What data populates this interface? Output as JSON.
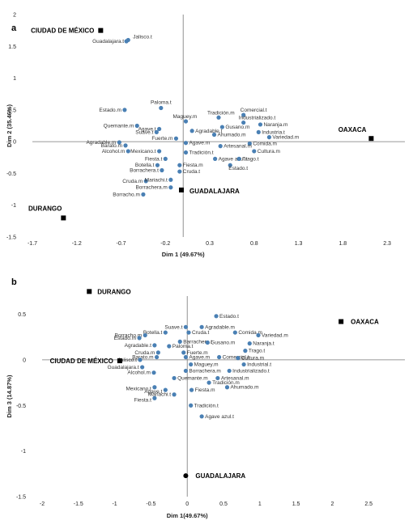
{
  "chart_data": [
    {
      "type": "scatter",
      "panel": "a",
      "xlabel": "Dim 1 (49.67%)",
      "ylabel": "Dim 2 (35.46%)",
      "xlim": [
        -1.7,
        2.5
      ],
      "ylim": [
        -1.5,
        2
      ],
      "xticks": [
        -1.7,
        -1.2,
        -0.7,
        -0.2,
        0.3,
        0.8,
        1.3,
        1.8,
        2.3
      ],
      "yticks": [
        2,
        1.5,
        1,
        0.5,
        0,
        -0.5,
        -1,
        -1.5
      ],
      "ytick_labels": [
        "2",
        "1.5",
        "1",
        "0.5",
        "0",
        "-0.5",
        "-1",
        "-1.5"
      ],
      "cities": [
        {
          "label": "CIUDAD DE MÉXICO",
          "x": -0.93,
          "y": 1.75,
          "marker": "square"
        },
        {
          "label": "OAXACA",
          "x": 2.12,
          "y": 0.05,
          "marker": "square"
        },
        {
          "label": "GUADALAJARA",
          "x": -0.02,
          "y": -0.76,
          "marker": "square"
        },
        {
          "label": "DURANGO",
          "x": -1.35,
          "y": -1.2,
          "marker": "square"
        }
      ],
      "points": [
        {
          "label": "Jalisco.t",
          "x": -0.62,
          "y": 1.6
        },
        {
          "label": "Guadalajara.t",
          "x": -0.64,
          "y": 1.58,
          "show": false
        },
        {
          "label": "Paloma.t",
          "x": -0.25,
          "y": 0.53
        },
        {
          "label": "Estado.m",
          "x": -0.66,
          "y": 0.5
        },
        {
          "label": "Tradición.m",
          "x": 0.4,
          "y": 0.38
        },
        {
          "label": "Comercial.t",
          "x": 0.68,
          "y": 0.42
        },
        {
          "label": "Maguey.m",
          "x": 0.03,
          "y": 0.32
        },
        {
          "label": "Industrializado.t",
          "x": 0.68,
          "y": 0.3
        },
        {
          "label": "Agave.t",
          "x": -0.27,
          "y": 0.2
        },
        {
          "label": "Quemante.m",
          "x": -0.52,
          "y": 0.25
        },
        {
          "label": "Naranja.m",
          "x": 0.87,
          "y": 0.27
        },
        {
          "label": "Gusano.m",
          "x": 0.44,
          "y": 0.23
        },
        {
          "label": "Suave.t",
          "x": -0.3,
          "y": 0.15
        },
        {
          "label": "Agradable.t",
          "x": 0.1,
          "y": 0.17
        },
        {
          "label": "Industria.t",
          "x": 0.85,
          "y": 0.15
        },
        {
          "label": "Fuerte.m",
          "x": -0.08,
          "y": 0.05
        },
        {
          "label": "Ahumado.m",
          "x": 0.35,
          "y": 0.11
        },
        {
          "label": "Variedad.m",
          "x": 0.97,
          "y": 0.07
        },
        {
          "label": "Comida.m",
          "x": 0.75,
          "y": -0.03
        },
        {
          "label": "Agave.m",
          "x": 0.03,
          "y": -0.02
        },
        {
          "label": "Barato.m",
          "x": -0.65,
          "y": -0.06
        },
        {
          "label": "Cultura.m",
          "x": 0.8,
          "y": -0.15
        },
        {
          "label": "Artesanal.m",
          "x": 0.42,
          "y": -0.07
        },
        {
          "label": "Agradable.m",
          "x": -0.72,
          "y": -0.01
        },
        {
          "label": "Alcohol.m",
          "x": -0.62,
          "y": -0.15
        },
        {
          "label": "Mexicano.t",
          "x": -0.27,
          "y": -0.15
        },
        {
          "label": "Tradición.t",
          "x": 0.03,
          "y": -0.17
        },
        {
          "label": "Agave azul.t",
          "x": 0.36,
          "y": -0.27
        },
        {
          "label": "Trago.t",
          "x": 0.63,
          "y": -0.27
        },
        {
          "label": "Fiesta.t",
          "x": -0.2,
          "y": -0.27
        },
        {
          "label": "Botella.t",
          "x": -0.29,
          "y": -0.37
        },
        {
          "label": "Fiesta.m",
          "x": -0.04,
          "y": -0.37
        },
        {
          "label": "Estado.t",
          "x": 0.53,
          "y": -0.37
        },
        {
          "label": "Borrachera.t",
          "x": -0.24,
          "y": -0.45
        },
        {
          "label": "Cruda.t",
          "x": -0.04,
          "y": -0.47
        },
        {
          "label": "Cruda.m",
          "x": -0.42,
          "y": -0.62
        },
        {
          "label": "Mariachi.t",
          "x": -0.14,
          "y": -0.6
        },
        {
          "label": "Borrachera.m",
          "x": -0.14,
          "y": -0.72
        },
        {
          "label": "Borracho.m",
          "x": -0.45,
          "y": -0.83
        }
      ]
    },
    {
      "type": "scatter",
      "panel": "b",
      "xlabel": "Dim 1(49.67%)",
      "ylabel": "Dim 3 (14.87%)",
      "xlim": [
        -2,
        3
      ],
      "ylim": [
        -1.5,
        0.7
      ],
      "xticks": [
        -2,
        -1.5,
        -1,
        -0.5,
        0,
        0.5,
        1,
        1.5,
        2,
        2.5
      ],
      "yticks": [
        0.5,
        0,
        -0.5,
        -1,
        -1.5
      ],
      "ytick_labels": [
        "0.5",
        "0",
        "-0.5",
        "-1",
        "-1.5"
      ],
      "cities": [
        {
          "label": "DURANGO",
          "x": -1.35,
          "y": 0.75,
          "marker": "square"
        },
        {
          "label": "OAXACA",
          "x": 2.12,
          "y": 0.42,
          "marker": "square"
        },
        {
          "label": "CIUDAD DE MÉXICO",
          "x": -0.93,
          "y": -0.01,
          "marker": "square"
        },
        {
          "label": "GUADALAJARA",
          "x": -0.02,
          "y": -1.27,
          "marker": "circle"
        }
      ],
      "points": [
        {
          "label": "Estado.t",
          "x": 0.4,
          "y": 0.48
        },
        {
          "label": "Agradable.m",
          "x": 0.2,
          "y": 0.36
        },
        {
          "label": "Suave.t",
          "x": -0.02,
          "y": 0.36
        },
        {
          "label": "Comida.m",
          "x": 0.66,
          "y": 0.3
        },
        {
          "label": "Cruda.t",
          "x": 0.02,
          "y": 0.3
        },
        {
          "label": "Botella.t",
          "x": -0.3,
          "y": 0.3
        },
        {
          "label": "Variedad.m",
          "x": 0.98,
          "y": 0.27
        },
        {
          "label": "Borracho.m",
          "x": -0.58,
          "y": 0.27
        },
        {
          "label": "Estado.m",
          "x": -0.66,
          "y": 0.24
        },
        {
          "label": "Barrachera.t",
          "x": -0.1,
          "y": 0.2
        },
        {
          "label": "Gusano.m",
          "x": 0.28,
          "y": 0.19
        },
        {
          "label": "Naranja.t",
          "x": 0.86,
          "y": 0.18
        },
        {
          "label": "Paloma.t",
          "x": -0.25,
          "y": 0.15
        },
        {
          "label": "Agradable.t",
          "x": -0.45,
          "y": 0.16
        },
        {
          "label": "Trago.t",
          "x": 0.8,
          "y": 0.1
        },
        {
          "label": "Fuerte.m",
          "x": -0.05,
          "y": 0.08
        },
        {
          "label": "Cruda.m",
          "x": -0.4,
          "y": 0.08
        },
        {
          "label": "Agave.m",
          "x": -0.02,
          "y": 0.03
        },
        {
          "label": "Comercial.t",
          "x": 0.44,
          "y": 0.03
        },
        {
          "label": "Barato.m",
          "x": -0.42,
          "y": 0.03
        },
        {
          "label": "Cultura.m",
          "x": 0.7,
          "y": 0.02
        },
        {
          "label": "Jalisco.t",
          "x": -0.65,
          "y": 0.0
        },
        {
          "label": "Maguey.m",
          "x": 0.05,
          "y": -0.05
        },
        {
          "label": "Industrial.t",
          "x": 0.78,
          "y": -0.05
        },
        {
          "label": "Guadalajara.t",
          "x": -0.62,
          "y": -0.08
        },
        {
          "label": "Borrachera.m",
          "x": -0.02,
          "y": -0.12
        },
        {
          "label": "Industrializado.t",
          "x": 0.58,
          "y": -0.12
        },
        {
          "label": "Alcohol.m",
          "x": -0.46,
          "y": -0.14
        },
        {
          "label": "Artesanal.m",
          "x": 0.42,
          "y": -0.2
        },
        {
          "label": "Quemante.m",
          "x": -0.18,
          "y": -0.2
        },
        {
          "label": "Tradición.m",
          "x": 0.3,
          "y": -0.25
        },
        {
          "label": "Ahumado.m",
          "x": 0.55,
          "y": -0.3
        },
        {
          "label": "Mexicano.t",
          "x": -0.45,
          "y": -0.3
        },
        {
          "label": "Agave.t",
          "x": -0.3,
          "y": -0.33
        },
        {
          "label": "Fiesta.m",
          "x": 0.06,
          "y": -0.33
        },
        {
          "label": "Mariachi.t",
          "x": -0.18,
          "y": -0.38
        },
        {
          "label": "Fiesta.t",
          "x": -0.45,
          "y": -0.42
        },
        {
          "label": "Tradición.t",
          "x": 0.05,
          "y": -0.5
        },
        {
          "label": "Agave azul.t",
          "x": 0.2,
          "y": -0.62
        }
      ]
    }
  ]
}
